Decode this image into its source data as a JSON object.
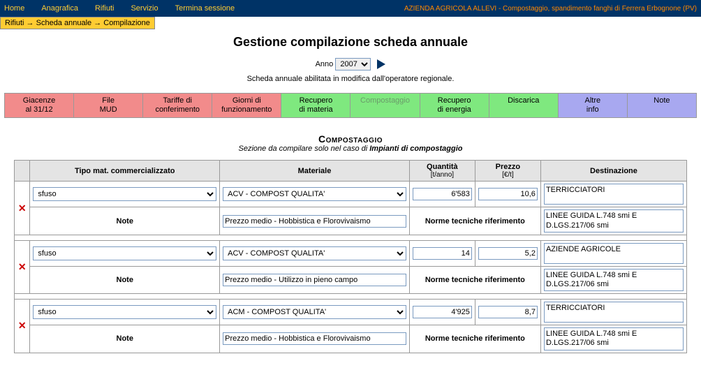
{
  "topmenu": {
    "home": "Home",
    "anagrafica": "Anagrafica",
    "rifiuti": "Rifiuti",
    "servizio": "Servizio",
    "termina": "Termina sessione"
  },
  "company": "AZIENDA AGRICOLA ALLEVI - Compostaggio, spandimento fanghi di Ferrera Erbognone (PV)",
  "breadcrumb": "Rifiuti → Scheda annuale → Compilazione",
  "page_title": "Gestione compilazione scheda annuale",
  "year": {
    "label": "Anno",
    "value": "2007"
  },
  "status_line": "Scheda annuale abilitata in modifica dall'operatore regionale.",
  "tabs": {
    "giacenze": "Giacenze\nal 31/12",
    "mud": "File\nMUD",
    "tariffe": "Tariffe di\nconferimento",
    "giorni": "Giorni di\nfunzionamento",
    "recmateria": "Recupero\ndi materia",
    "compostaggio": "Compostaggio",
    "recenergia": "Recupero\ndi energia",
    "discarica": "Discarica",
    "altre": "Altre\ninfo",
    "note": "Note"
  },
  "section": {
    "title": "Compostaggio",
    "sub_prefix": "Sezione da compilare solo nel caso di ",
    "sub_bold": "Impianti di compostaggio"
  },
  "headers": {
    "tipo": "Tipo mat. commercializzato",
    "materiale": "Materiale",
    "quantita": "Quantità",
    "quantita_unit": "[t/anno]",
    "prezzo": "Prezzo",
    "prezzo_unit": "[€/t]",
    "destinazione": "Destinazione",
    "note": "Note",
    "norme": "Norme tecniche riferimento"
  },
  "rows": [
    {
      "tipo": "sfuso",
      "materiale": "ACV - COMPOST QUALITA'",
      "quantita": "6'583",
      "prezzo": "10,6",
      "destinazione": "TERRICCIATORI",
      "note_text": "Prezzo medio - Hobbistica e Florovivaismo",
      "norme_text": "LINEE GUIDA L.748 smi E D.LGS.217/06 smi"
    },
    {
      "tipo": "sfuso",
      "materiale": "ACV - COMPOST QUALITA'",
      "quantita": "14",
      "prezzo": "5,2",
      "destinazione": "AZIENDE AGRICOLE",
      "note_text": "Prezzo medio - Utilizzo in pieno campo",
      "norme_text": "LINEE GUIDA L.748 smi E D.LGS.217/06 smi"
    },
    {
      "tipo": "sfuso",
      "materiale": "ACM - COMPOST QUALITA'",
      "quantita": "4'925",
      "prezzo": "8,7",
      "destinazione": "TERRICCIATORI",
      "note_text": "Prezzo medio - Hobbistica e Florovivaismo",
      "norme_text": "LINEE GUIDA L.748 smi E D.LGS.217/06 smi"
    }
  ],
  "colors": {
    "topbar_bg": "#003366",
    "menu_fg": "#ffcc33",
    "company_fg": "#ff8800",
    "breadcrumb_bg": "#ffcc33",
    "tab_pink": "#f28b8b",
    "tab_green": "#7fe87f",
    "tab_purple": "#a8a8f0",
    "border": "#999999",
    "header_bg": "#e4e4e4",
    "input_border": "#7a9ac0",
    "delete_x": "#cc0000"
  }
}
